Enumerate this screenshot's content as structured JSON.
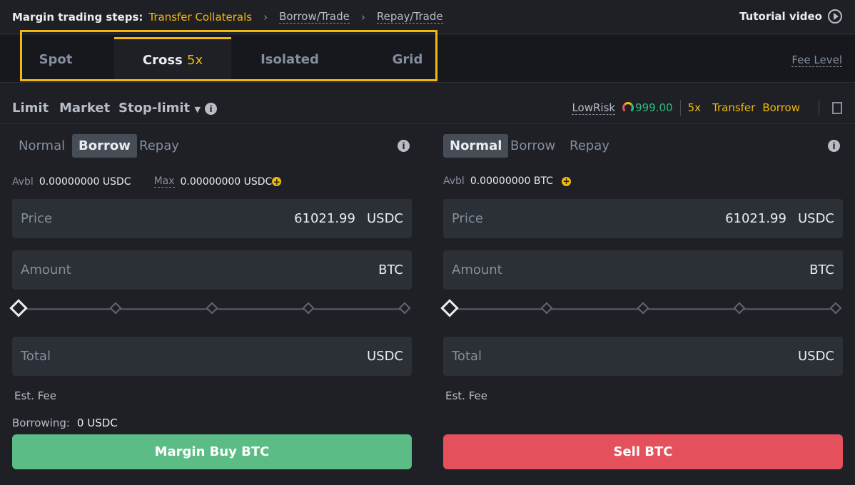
{
  "steps": {
    "label": "Margin trading steps:",
    "items": [
      "Transfer Collaterals",
      "Borrow/Trade",
      "Repay/Trade"
    ]
  },
  "tutorial": "Tutorial video",
  "tabs": [
    {
      "label": "Spot"
    },
    {
      "label": "Cross",
      "badge": "5x"
    },
    {
      "label": "Isolated"
    },
    {
      "label": "Grid"
    }
  ],
  "fee_level": "Fee Level",
  "order_types": [
    "Limit",
    "Market",
    "Stop-limit"
  ],
  "risk": {
    "label": "LowRisk",
    "value": "999.00"
  },
  "leverage": "5x",
  "transfer": "Transfer",
  "borrow": "Borrow",
  "buy": {
    "modes": [
      "Normal",
      "Borrow",
      "Repay"
    ],
    "selected_mode": "Borrow",
    "avbl_label": "Avbl",
    "avbl": "0.00000000 USDC",
    "max_label": "Max",
    "max": "0.00000000 USDC",
    "price_label": "Price",
    "price": "61021.99",
    "price_unit": "USDC",
    "amount_label": "Amount",
    "amount_unit": "BTC",
    "total_label": "Total",
    "total_unit": "USDC",
    "slider_percent": 0,
    "est_fee": "Est. Fee",
    "borrowing_label": "Borrowing:",
    "borrowing": "0 USDC",
    "button": "Margin Buy BTC"
  },
  "sell": {
    "modes": [
      "Normal",
      "Borrow",
      "Repay"
    ],
    "selected_mode": "Normal",
    "avbl_label": "Avbl",
    "avbl": "0.00000000 BTC",
    "price_label": "Price",
    "price": "61021.99",
    "price_unit": "USDC",
    "amount_label": "Amount",
    "amount_unit": "BTC",
    "total_label": "Total",
    "total_unit": "USDC",
    "slider_percent": 0,
    "est_fee": "Est. Fee",
    "button": "Sell BTC"
  },
  "colors": {
    "accent": "#f0b90b",
    "buy": "#5bbd85",
    "sell": "#e5505d",
    "risk": "#2ebd85"
  }
}
